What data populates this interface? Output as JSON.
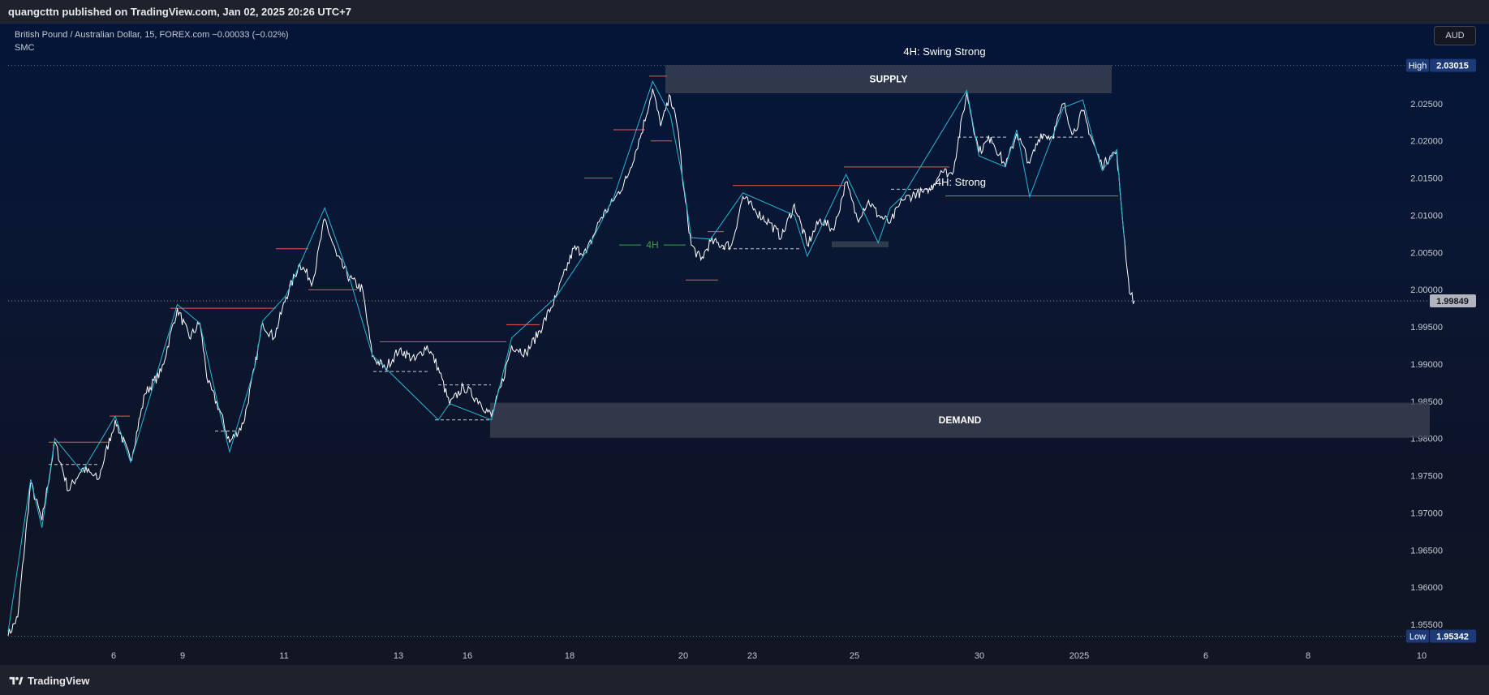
{
  "header": {
    "publisher": "quangcttn published on TradingView.com, Jan 02, 2025 20:26 UTC+7"
  },
  "legend": {
    "symbol_line": "British Pound / Australian Dollar, 15, FOREX.com  −0.00033 (−0.02%)",
    "indicator": "SMC"
  },
  "toolbar": {
    "currency_label": "AUD"
  },
  "footer": {
    "brand": "TradingView"
  },
  "colors": {
    "price": "#ffffff",
    "zigzag": "#29b6d6",
    "structure": "#f05555",
    "zone_fill": "#3a4152",
    "label_4h": "#3a9d50",
    "high_badge": "#1c3a78"
  },
  "icons": [
    "tradingview-logo-icon"
  ],
  "chart_data": {
    "type": "line",
    "symbol": "GBP/AUD",
    "interval": "15",
    "indicator": "SMC",
    "ylim": [
      1.9517,
      2.0335
    ],
    "y_ticks": [
      "1.95500",
      "1.96000",
      "1.96500",
      "1.97000",
      "1.97500",
      "1.98000",
      "1.98500",
      "1.99000",
      "1.99500",
      "2.00000",
      "2.00500",
      "2.01000",
      "2.01500",
      "2.02000",
      "2.02500"
    ],
    "x_ticks": [
      "6",
      "9",
      "11",
      "13",
      "16",
      "18",
      "20",
      "23",
      "25",
      "30",
      "2025",
      "6",
      "8",
      "10"
    ],
    "high": {
      "label": "High",
      "value": "2.03015"
    },
    "low": {
      "label": "Low",
      "value": "1.95342"
    },
    "last": {
      "value": "1.99849"
    },
    "zones": [
      {
        "label": "SUPPLY",
        "price_top": 2.0302,
        "price_bottom": 2.0264
      },
      {
        "label": "DEMAND",
        "price_top": 1.9848,
        "price_bottom": 1.9801
      }
    ],
    "annotations": [
      "4H: Swing Strong",
      "4H",
      "4H: Strong"
    ],
    "swings": [
      {
        "x": 0,
        "y": 1.9535
      },
      {
        "x": 12,
        "y": 1.956
      },
      {
        "x": 28,
        "y": 1.974
      },
      {
        "x": 42,
        "y": 1.969
      },
      {
        "x": 58,
        "y": 1.9795
      },
      {
        "x": 75,
        "y": 1.973
      },
      {
        "x": 92,
        "y": 1.976
      },
      {
        "x": 112,
        "y": 1.9745
      },
      {
        "x": 133,
        "y": 1.9825
      },
      {
        "x": 152,
        "y": 1.977
      },
      {
        "x": 170,
        "y": 1.986
      },
      {
        "x": 190,
        "y": 1.989
      },
      {
        "x": 210,
        "y": 1.9975
      },
      {
        "x": 225,
        "y": 1.9935
      },
      {
        "x": 238,
        "y": 1.9955
      },
      {
        "x": 248,
        "y": 1.9875
      },
      {
        "x": 262,
        "y": 1.984
      },
      {
        "x": 275,
        "y": 1.9795
      },
      {
        "x": 292,
        "y": 1.982
      },
      {
        "x": 306,
        "y": 1.9895
      },
      {
        "x": 316,
        "y": 1.9955
      },
      {
        "x": 330,
        "y": 1.9935
      },
      {
        "x": 345,
        "y": 1.999
      },
      {
        "x": 362,
        "y": 2.0035
      },
      {
        "x": 378,
        "y": 2.001
      },
      {
        "x": 393,
        "y": 2.0095
      },
      {
        "x": 408,
        "y": 2.0045
      },
      {
        "x": 424,
        "y": 2.0015
      },
      {
        "x": 440,
        "y": 2.0
      },
      {
        "x": 452,
        "y": 1.991
      },
      {
        "x": 468,
        "y": 1.9895
      },
      {
        "x": 486,
        "y": 1.992
      },
      {
        "x": 505,
        "y": 1.9905
      },
      {
        "x": 520,
        "y": 1.9925
      },
      {
        "x": 534,
        "y": 1.9895
      },
      {
        "x": 548,
        "y": 1.9845
      },
      {
        "x": 565,
        "y": 1.987
      },
      {
        "x": 585,
        "y": 1.985
      },
      {
        "x": 600,
        "y": 1.983
      },
      {
        "x": 612,
        "y": 1.987
      },
      {
        "x": 625,
        "y": 1.9925
      },
      {
        "x": 643,
        "y": 1.9915
      },
      {
        "x": 660,
        "y": 1.9945
      },
      {
        "x": 680,
        "y": 1.999
      },
      {
        "x": 702,
        "y": 2.0055
      },
      {
        "x": 718,
        "y": 2.005
      },
      {
        "x": 735,
        "y": 2.0095
      },
      {
        "x": 752,
        "y": 2.012
      },
      {
        "x": 768,
        "y": 2.015
      },
      {
        "x": 786,
        "y": 2.021
      },
      {
        "x": 800,
        "y": 2.027
      },
      {
        "x": 810,
        "y": 2.022
      },
      {
        "x": 822,
        "y": 2.026
      },
      {
        "x": 832,
        "y": 2.0212
      },
      {
        "x": 838,
        "y": 2.014
      },
      {
        "x": 848,
        "y": 2.006
      },
      {
        "x": 860,
        "y": 2.004
      },
      {
        "x": 872,
        "y": 2.0065
      },
      {
        "x": 886,
        "y": 2.006
      },
      {
        "x": 898,
        "y": 2.006
      },
      {
        "x": 912,
        "y": 2.0125
      },
      {
        "x": 928,
        "y": 2.0105
      },
      {
        "x": 945,
        "y": 2.009
      },
      {
        "x": 960,
        "y": 2.007
      },
      {
        "x": 976,
        "y": 2.0115
      },
      {
        "x": 992,
        "y": 2.006
      },
      {
        "x": 1008,
        "y": 2.0095
      },
      {
        "x": 1025,
        "y": 2.008
      },
      {
        "x": 1040,
        "y": 2.0145
      },
      {
        "x": 1054,
        "y": 2.0095
      },
      {
        "x": 1068,
        "y": 2.012
      },
      {
        "x": 1080,
        "y": 2.01
      },
      {
        "x": 1095,
        "y": 2.009
      },
      {
        "x": 1110,
        "y": 2.012
      },
      {
        "x": 1128,
        "y": 2.013
      },
      {
        "x": 1142,
        "y": 2.013
      },
      {
        "x": 1158,
        "y": 2.016
      },
      {
        "x": 1172,
        "y": 2.0155
      },
      {
        "x": 1190,
        "y": 2.0265
      },
      {
        "x": 1205,
        "y": 2.0185
      },
      {
        "x": 1220,
        "y": 2.0205
      },
      {
        "x": 1238,
        "y": 2.0165
      },
      {
        "x": 1252,
        "y": 2.021
      },
      {
        "x": 1268,
        "y": 2.017
      },
      {
        "x": 1282,
        "y": 2.021
      },
      {
        "x": 1296,
        "y": 2.0205
      },
      {
        "x": 1310,
        "y": 2.025
      },
      {
        "x": 1322,
        "y": 2.021
      },
      {
        "x": 1334,
        "y": 2.024
      },
      {
        "x": 1346,
        "y": 2.02
      },
      {
        "x": 1358,
        "y": 2.0165
      },
      {
        "x": 1368,
        "y": 2.018
      },
      {
        "x": 1376,
        "y": 2.0185
      },
      {
        "x": 1380,
        "y": 2.0135
      },
      {
        "x": 1386,
        "y": 2.0065
      },
      {
        "x": 1392,
        "y": 1.9995
      },
      {
        "x": 1398,
        "y": 1.9985
      }
    ]
  }
}
